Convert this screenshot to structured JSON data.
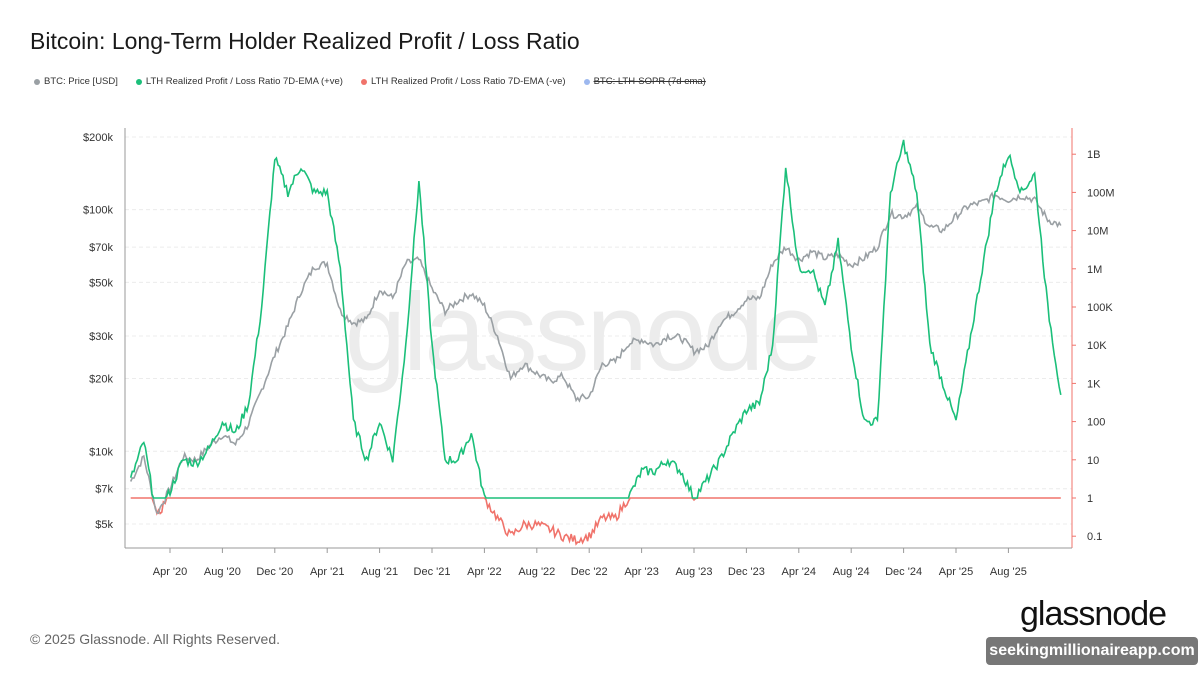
{
  "title": "Bitcoin: Long-Term Holder Realized Profit / Loss Ratio",
  "legend": [
    {
      "label": "BTC: Price [USD]",
      "color": "#9aa0a4",
      "disabled": false
    },
    {
      "label": "LTH Realized Profit / Loss Ratio 7D-EMA (+ve)",
      "color": "#1bbf7a",
      "disabled": false
    },
    {
      "label": "LTH Realized Profit / Loss Ratio 7D-EMA (-ve)",
      "color": "#f0736b",
      "disabled": false
    },
    {
      "label": "BTC: LTH-SOPR (7d ema)",
      "color": "#9db8ef",
      "disabled": true
    }
  ],
  "watermark": "glassnode",
  "footer": "© 2025 Glassnode. All Rights Reserved.",
  "logo": "glassnode",
  "overlay_badge": "seekingmillionaireapp.com",
  "chart_data": {
    "type": "line",
    "title": "Bitcoin: Long-Term Holder Realized Profit / Loss Ratio",
    "grid": true,
    "legend_position": "top-left",
    "x_ticks": [
      "Apr '20",
      "Aug '20",
      "Dec '20",
      "Apr '21",
      "Aug '21",
      "Dec '21",
      "Apr '22",
      "Aug '22",
      "Dec '22",
      "Apr '23",
      "Aug '23",
      "Dec '23",
      "Apr '24",
      "Aug '24",
      "Dec '24",
      "Apr '25",
      "Aug '25"
    ],
    "left_axis": {
      "scale": "log",
      "range": [
        4200,
        200000
      ],
      "ticks": [
        {
          "v": 200000,
          "label": "$200k"
        },
        {
          "v": 100000,
          "label": "$100k"
        },
        {
          "v": 70000,
          "label": "$70k"
        },
        {
          "v": 50000,
          "label": "$50k"
        },
        {
          "v": 30000,
          "label": "$30k"
        },
        {
          "v": 20000,
          "label": "$20k"
        },
        {
          "v": 10000,
          "label": "$10k"
        },
        {
          "v": 7000,
          "label": "$7k"
        },
        {
          "v": 5000,
          "label": "$5k"
        }
      ]
    },
    "right_axis": {
      "scale": "log",
      "range": [
        0.07,
        3000000000
      ],
      "ticks": [
        {
          "v": 1000000000.0,
          "label": "1B"
        },
        {
          "v": 100000000.0,
          "label": "100M"
        },
        {
          "v": 10000000.0,
          "label": "10M"
        },
        {
          "v": 1000000.0,
          "label": "1M"
        },
        {
          "v": 100000.0,
          "label": "100K"
        },
        {
          "v": 10000.0,
          "label": "10K"
        },
        {
          "v": 1000.0,
          "label": "1K"
        },
        {
          "v": 100,
          "label": "100"
        },
        {
          "v": 10,
          "label": "10"
        },
        {
          "v": 1,
          "label": "1"
        },
        {
          "v": 0.1,
          "label": "0.1"
        }
      ]
    },
    "dates": [
      "2020-01",
      "2020-02",
      "2020-03",
      "2020-04",
      "2020-05",
      "2020-06",
      "2020-07",
      "2020-08",
      "2020-09",
      "2020-10",
      "2020-11",
      "2020-12",
      "2021-01",
      "2021-02",
      "2021-03",
      "2021-04",
      "2021-05",
      "2021-06",
      "2021-07",
      "2021-08",
      "2021-09",
      "2021-10",
      "2021-11",
      "2021-12",
      "2022-01",
      "2022-02",
      "2022-03",
      "2022-04",
      "2022-05",
      "2022-06",
      "2022-07",
      "2022-08",
      "2022-09",
      "2022-10",
      "2022-11",
      "2022-12",
      "2023-01",
      "2023-02",
      "2023-03",
      "2023-04",
      "2023-05",
      "2023-06",
      "2023-07",
      "2023-08",
      "2023-09",
      "2023-10",
      "2023-11",
      "2023-12",
      "2024-01",
      "2024-02",
      "2024-03",
      "2024-04",
      "2024-05",
      "2024-06",
      "2024-07",
      "2024-08",
      "2024-09",
      "2024-10",
      "2024-11",
      "2024-12",
      "2025-01",
      "2025-02",
      "2025-03",
      "2025-04",
      "2025-05",
      "2025-06",
      "2025-07",
      "2025-08",
      "2025-09",
      "2025-10",
      "2025-11",
      "2025-12"
    ],
    "series": [
      {
        "name": "BTC: Price [USD]",
        "axis": "left",
        "color": "#9aa0a4",
        "values": [
          7500,
          9500,
          5500,
          7000,
          9500,
          9200,
          10500,
          11700,
          10700,
          13000,
          18000,
          25000,
          33000,
          46000,
          58000,
          60000,
          38000,
          34000,
          35000,
          47000,
          43000,
          60000,
          62000,
          47000,
          38000,
          42000,
          45000,
          40000,
          30000,
          20000,
          23000,
          21000,
          19500,
          20500,
          16500,
          16800,
          23000,
          23500,
          28000,
          29000,
          27500,
          30000,
          29500,
          26000,
          27000,
          34000,
          37500,
          42500,
          43000,
          60000,
          70000,
          62000,
          67000,
          63000,
          65000,
          59000,
          63000,
          70000,
          96000,
          94000,
          102000,
          85000,
          82000,
          94000,
          104000,
          107000,
          115000,
          110000,
          114000,
          110000,
          91000,
          86000
        ]
      },
      {
        "name": "LTH Realized Profit / Loss Ratio 7D-EMA",
        "axis": "right",
        "color_pos": "#1bbf7a",
        "color_neg": "#f0736b",
        "values": [
          3,
          30,
          0.3,
          1.5,
          10,
          8,
          20,
          100,
          50,
          300,
          100000,
          800000000,
          100000000,
          500000000,
          100000000,
          100000000,
          1000000,
          100,
          10,
          100,
          10,
          10000,
          200000000,
          10000,
          10,
          10,
          50,
          1,
          0.3,
          0.1,
          0.2,
          0.2,
          0.15,
          0.1,
          0.08,
          0.1,
          0.3,
          0.3,
          1,
          5,
          5,
          10,
          5,
          1,
          3,
          10,
          50,
          200,
          300,
          10000,
          500000000,
          1000000,
          1000000,
          100000,
          5000000,
          10000,
          100,
          100,
          100000000,
          2000000000,
          100000000,
          10000,
          1000,
          100,
          10000,
          1000000,
          100000000,
          1000000000,
          100000000,
          300000000,
          100000,
          500
        ]
      }
    ]
  }
}
